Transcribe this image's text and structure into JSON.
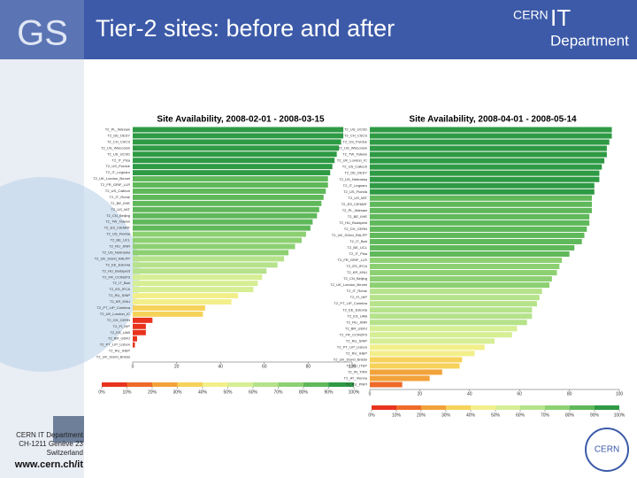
{
  "slide": {
    "title": "Tier-2 sites: before and after",
    "logo_text": "GS",
    "org": "CERN",
    "org_it": "IT",
    "dept": "Department",
    "footer_lines": [
      "CERN IT Department",
      "CH-1211 Genève 23",
      "Switzerland"
    ],
    "url": "www.cern.ch/it",
    "cern_logo": "CERN"
  },
  "chart_data": [
    {
      "type": "barh",
      "title": "Site Availability, 2008-02-01 - 2008-03-15",
      "categories": [
        "T2_PL_Warsaw",
        "T2_DE_DESY",
        "T2_CH_CSCS",
        "T2_US_Wisconsin",
        "T2_US_UCSD",
        "T2_IT_Pisa",
        "T2_US_Purdue",
        "T2_IT_Legnaro",
        "T2_UK_London_Brunel",
        "T2_FR_GRIF_LLR",
        "T2_US_Caltech",
        "T2_IT_Rome",
        "T2_BE_IIHE",
        "T2_US_MIT",
        "T2_CN_Beijing",
        "T2_TW_Taiwan",
        "T2_ES_CIEMAT",
        "T2_US_Florida",
        "T2_BE_UCL",
        "T2_RU_JINR",
        "T2_US_Nebraska",
        "T2_UK_SGrid_RALPP",
        "T2_EE_Estonia",
        "T2_HU_Budapest",
        "T2_FR_CCIN2P3",
        "T2_IT_Bari",
        "T2_ES_IFCA",
        "T2_RU_SINP",
        "T2_KR_KNU",
        "T2_PT_LIP_Coimbra",
        "T2_UK_London_IC",
        "T2_CH_CERN",
        "T2_FI_HIP",
        "T2_ES_UAB",
        "T2_BR_UERJ",
        "T2_PT_LIP_Lisbon",
        "T2_RU_IHEP",
        "T2_UK_SGrid_Bristol"
      ],
      "values": [
        96,
        96,
        95,
        94,
        93,
        92,
        91,
        90,
        89,
        89,
        88,
        87,
        86,
        85,
        84,
        82,
        81,
        79,
        77,
        74,
        71,
        69,
        66,
        61,
        59,
        57,
        55,
        48,
        45,
        33,
        32,
        9,
        6,
        6,
        2,
        1,
        0,
        0
      ],
      "xlim": [
        0,
        100
      ],
      "xticks": [
        0,
        20,
        40,
        60,
        80,
        100
      ],
      "colorscale": [
        "#e8331e",
        "#ee6a28",
        "#f2a23a",
        "#f6d25a",
        "#f2ef8a",
        "#d6ee94",
        "#b5e28a",
        "#8cd072",
        "#5fb85a",
        "#2e9a44"
      ],
      "legend_ticks": [
        {
          "value": 0,
          "label": "0%"
        },
        {
          "value": 10,
          "label": "10%"
        },
        {
          "value": 20,
          "label": "20%"
        },
        {
          "value": 30,
          "label": "30%"
        },
        {
          "value": 40,
          "label": "40%"
        },
        {
          "value": 50,
          "label": "50%"
        },
        {
          "value": 60,
          "label": "60%"
        },
        {
          "value": 70,
          "label": "70%"
        },
        {
          "value": 80,
          "label": "80%"
        },
        {
          "value": 90,
          "label": "90%"
        },
        {
          "value": 100,
          "label": "100%"
        }
      ]
    },
    {
      "type": "barh",
      "title": "Site Availability, 2008-04-01 - 2008-05-14",
      "categories": [
        "T2_US_UCSD",
        "T2_CH_CSCS",
        "T2_US_Purdue",
        "T2_US_Wisconsin",
        "T2_TW_Taiwan",
        "T2_UK_London_IC",
        "T2_US_Caltech",
        "T2_DE_DESY",
        "T2_US_Nebraska",
        "T2_IT_Legnaro",
        "T2_US_Florida",
        "T2_US_MIT",
        "T2_ES_CIEMAT",
        "T2_PL_Warsaw",
        "T2_BE_IIHE",
        "T2_HU_Budapest",
        "T2_CH_CERN",
        "T2_UK_SGrid_RALPP",
        "T2_IT_Bari",
        "T2_BE_UCL",
        "T2_IT_Pisa",
        "T2_FR_GRIF_LLR",
        "T2_ES_IFCA",
        "T2_KR_KNU",
        "T2_CN_Beijing",
        "T2_UK_London_Brunel",
        "T2_IT_Rome",
        "T2_FI_HIP",
        "T2_PT_LIP_Coimbra",
        "T2_EE_Estonia",
        "T2_ES_UAB",
        "T2_RU_JINR",
        "T2_BR_UERJ",
        "T2_FR_CCIN2P3",
        "T2_RU_SINP",
        "T2_PT_LIP_Lisbon",
        "T2_RU_IHEP",
        "T2_UK_SGrid_Bristol",
        "T2_RU_ITEP",
        "T2_IN_TIFR",
        "T2_AT_Vienna",
        "T2_RU_PNPI"
      ],
      "values": [
        97,
        97,
        96,
        95,
        95,
        94,
        93,
        92,
        92,
        90,
        90,
        89,
        89,
        89,
        88,
        88,
        87,
        86,
        85,
        82,
        80,
        77,
        76,
        75,
        73,
        72,
        69,
        68,
        67,
        65,
        65,
        63,
        59,
        57,
        50,
        46,
        42,
        37,
        36,
        29,
        24,
        13
      ],
      "xlim": [
        0,
        100
      ],
      "xticks": [
        0,
        20,
        40,
        60,
        80,
        100
      ],
      "colorscale": [
        "#e8331e",
        "#ee6a28",
        "#f2a23a",
        "#f6d25a",
        "#f2ef8a",
        "#d6ee94",
        "#b5e28a",
        "#8cd072",
        "#5fb85a",
        "#2e9a44"
      ],
      "legend_ticks": [
        {
          "value": 0,
          "label": "0%"
        },
        {
          "value": 10,
          "label": "10%"
        },
        {
          "value": 20,
          "label": "20%"
        },
        {
          "value": 30,
          "label": "30%"
        },
        {
          "value": 40,
          "label": "40%"
        },
        {
          "value": 50,
          "label": "50%"
        },
        {
          "value": 60,
          "label": "60%"
        },
        {
          "value": 70,
          "label": "70%"
        },
        {
          "value": 80,
          "label": "80%"
        },
        {
          "value": 90,
          "label": "90%"
        },
        {
          "value": 100,
          "label": "100%"
        }
      ]
    }
  ]
}
